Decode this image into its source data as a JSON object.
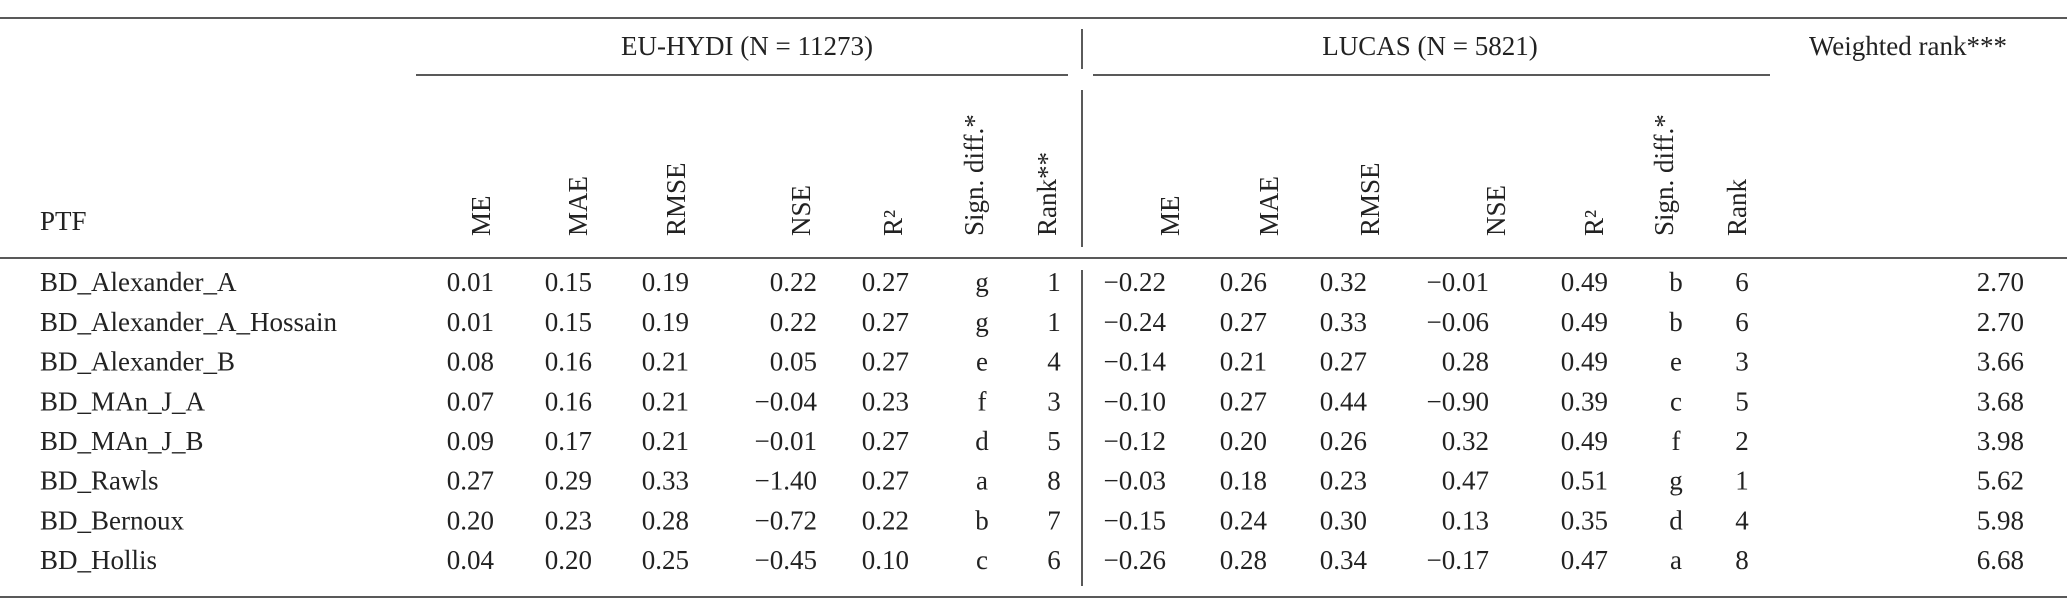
{
  "table": {
    "groups": [
      "EU-HYDI (N = 11273)",
      "LUCAS (N = 5821)",
      "Weighted rank***"
    ],
    "row_header": "PTF",
    "columns": [
      "ME",
      "MAE",
      "RMSE",
      "NSE",
      "R²",
      "Sign. diff.*",
      "Rank**",
      "ME",
      "MAE",
      "RMSE",
      "NSE",
      "R²",
      "Sign. diff.*",
      "Rank"
    ],
    "rows": [
      [
        "BD_Alexander_A",
        "0.01",
        "0.15",
        "0.19",
        "0.22",
        "0.27",
        "g",
        "1",
        "−0.22",
        "0.26",
        "0.32",
        "−0.01",
        "0.49",
        "b",
        "6",
        "2.70"
      ],
      [
        "BD_Alexander_A_Hossain",
        "0.01",
        "0.15",
        "0.19",
        "0.22",
        "0.27",
        "g",
        "1",
        "−0.24",
        "0.27",
        "0.33",
        "−0.06",
        "0.49",
        "b",
        "6",
        "2.70"
      ],
      [
        "BD_Alexander_B",
        "0.08",
        "0.16",
        "0.21",
        "0.05",
        "0.27",
        "e",
        "4",
        "−0.14",
        "0.21",
        "0.27",
        "0.28",
        "0.49",
        "e",
        "3",
        "3.66"
      ],
      [
        "BD_MAn_J_A",
        "0.07",
        "0.16",
        "0.21",
        "−0.04",
        "0.23",
        "f",
        "3",
        "−0.10",
        "0.27",
        "0.44",
        "−0.90",
        "0.39",
        "c",
        "5",
        "3.68"
      ],
      [
        "BD_MAn_J_B",
        "0.09",
        "0.17",
        "0.21",
        "−0.01",
        "0.27",
        "d",
        "5",
        "−0.12",
        "0.20",
        "0.26",
        "0.32",
        "0.49",
        "f",
        "2",
        "3.98"
      ],
      [
        "BD_Rawls",
        "0.27",
        "0.29",
        "0.33",
        "−1.40",
        "0.27",
        "a",
        "8",
        "−0.03",
        "0.18",
        "0.23",
        "0.47",
        "0.51",
        "g",
        "1",
        "5.62"
      ],
      [
        "BD_Bernoux",
        "0.20",
        "0.23",
        "0.28",
        "−0.72",
        "0.22",
        "b",
        "7",
        "−0.15",
        "0.24",
        "0.30",
        "0.13",
        "0.35",
        "d",
        "4",
        "5.98"
      ],
      [
        "BD_Hollis",
        "0.04",
        "0.20",
        "0.25",
        "−0.45",
        "0.10",
        "c",
        "6",
        "−0.26",
        "0.28",
        "0.34",
        "−0.17",
        "0.47",
        "a",
        "8",
        "6.68"
      ]
    ]
  }
}
